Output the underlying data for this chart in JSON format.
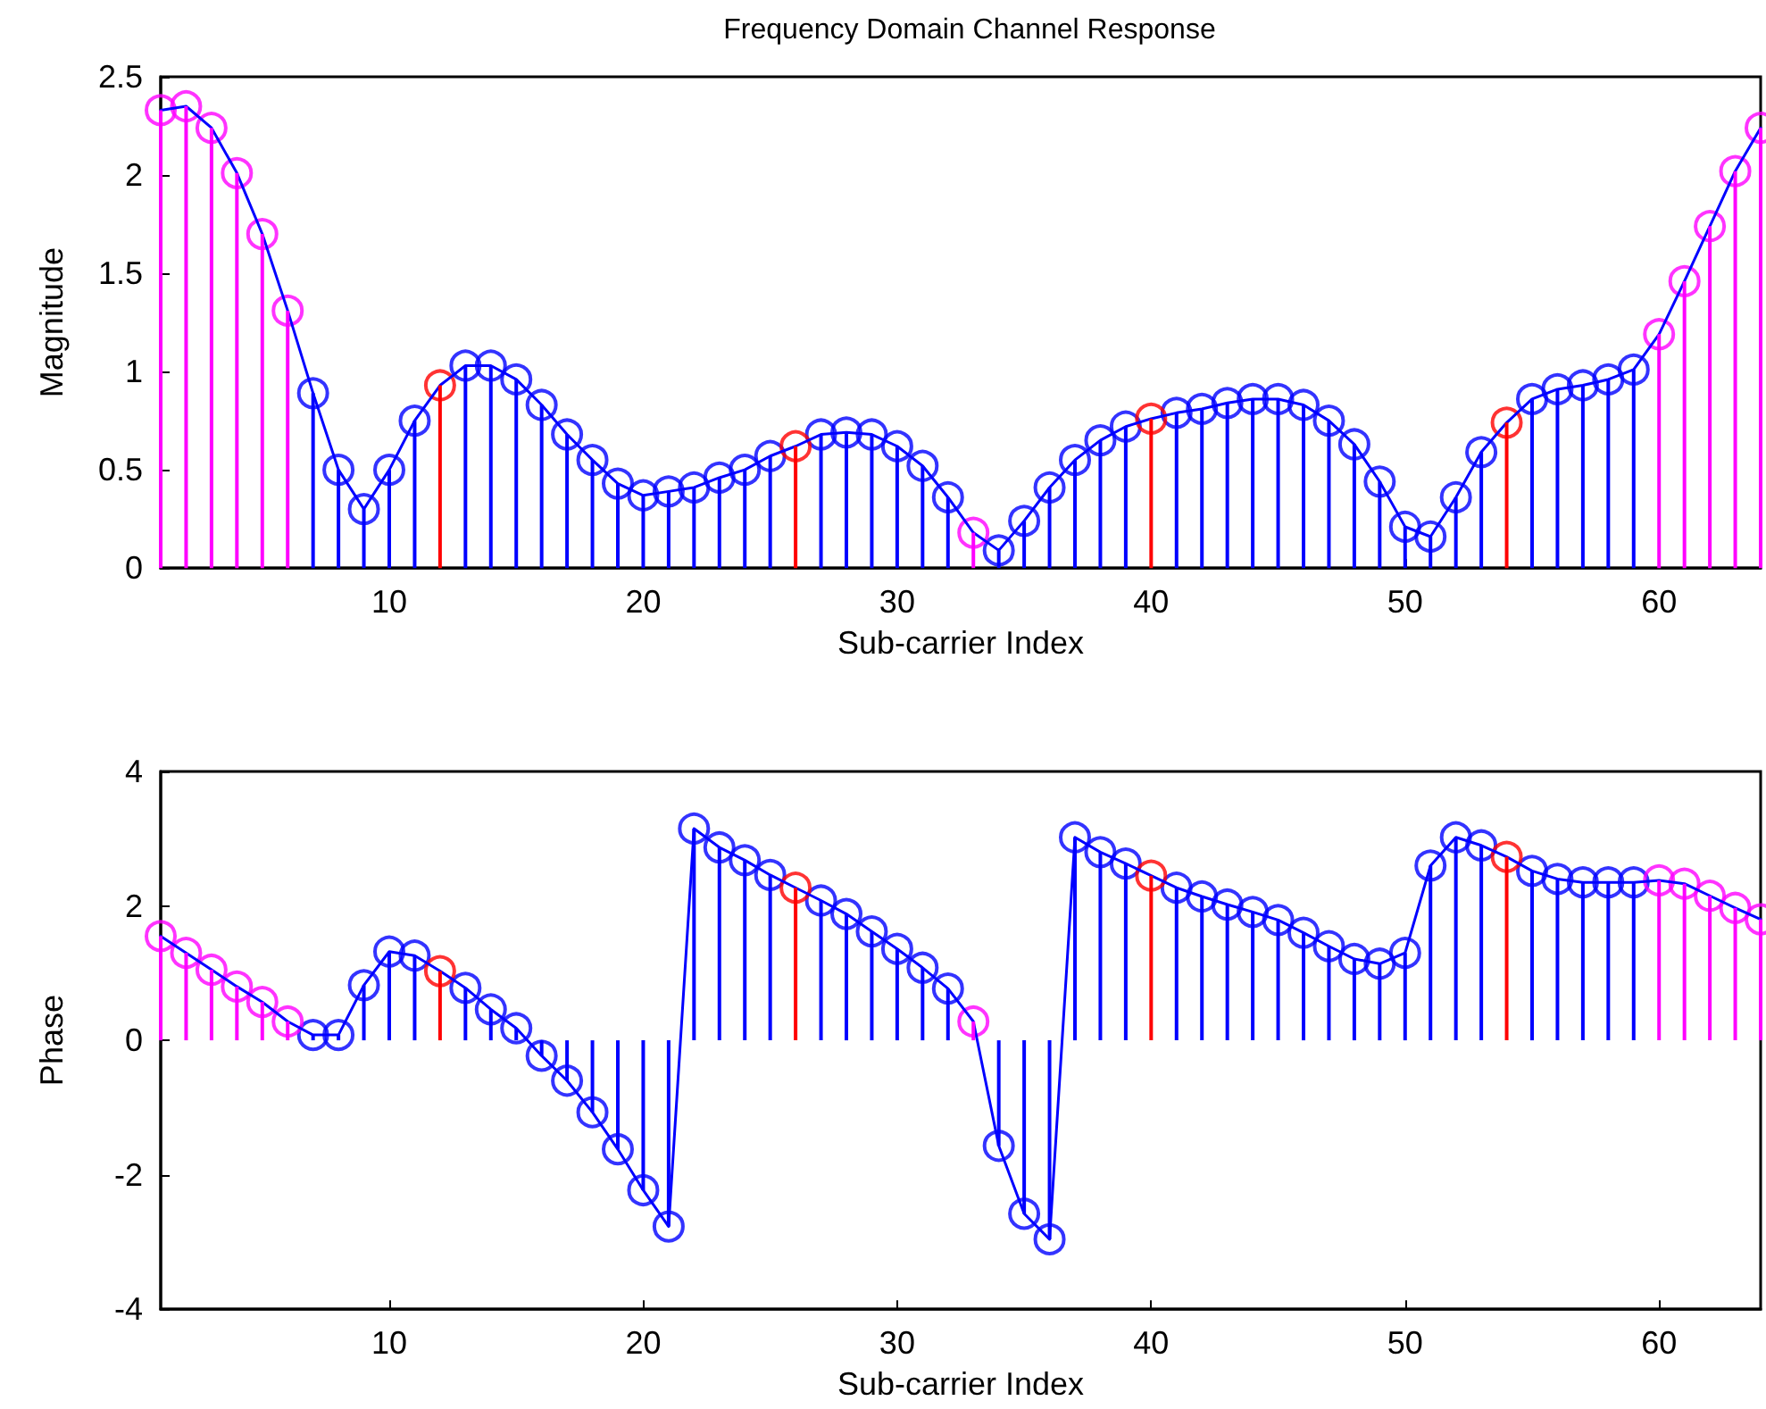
{
  "chart_data": [
    {
      "type": "lollipop",
      "title": "Frequency Domain Channel Response",
      "xlabel": "Sub-carrier Index",
      "ylabel": "Magnitude",
      "x": [
        1,
        2,
        3,
        4,
        5,
        6,
        7,
        8,
        9,
        10,
        11,
        12,
        13,
        14,
        15,
        16,
        17,
        18,
        19,
        20,
        21,
        22,
        23,
        24,
        25,
        26,
        27,
        28,
        29,
        30,
        31,
        32,
        33,
        34,
        35,
        36,
        37,
        38,
        39,
        40,
        41,
        42,
        43,
        44,
        45,
        46,
        47,
        48,
        49,
        50,
        51,
        52,
        53,
        54,
        55,
        56,
        57,
        58,
        59,
        60,
        61,
        62,
        63,
        64
      ],
      "xlim": [
        1,
        64
      ],
      "xticks": [
        10,
        20,
        30,
        40,
        50,
        60
      ],
      "ylim": [
        0,
        2.5
      ],
      "yticks": [
        0,
        0.5,
        1,
        1.5,
        2,
        2.5
      ],
      "grid": false,
      "marker": "circle",
      "series": [
        {
          "type": "line",
          "color": "#0000ff",
          "marker": "none",
          "line_style": "solid",
          "values": [
            2.33,
            2.35,
            2.24,
            2.01,
            1.7,
            1.31,
            0.89,
            0.5,
            0.3,
            0.5,
            0.75,
            0.93,
            1.03,
            1.03,
            0.96,
            0.83,
            0.68,
            0.55,
            0.43,
            0.37,
            0.39,
            0.41,
            0.46,
            0.5,
            0.57,
            0.62,
            0.68,
            0.69,
            0.68,
            0.62,
            0.52,
            0.36,
            0.18,
            0.09,
            0.24,
            0.41,
            0.55,
            0.65,
            0.72,
            0.76,
            0.79,
            0.81,
            0.84,
            0.86,
            0.86,
            0.83,
            0.75,
            0.63,
            0.44,
            0.21,
            0.16,
            0.36,
            0.59,
            0.74,
            0.86,
            0.91,
            0.93,
            0.96,
            1.01,
            1.19,
            1.46,
            1.74,
            2.02,
            2.24
          ]
        },
        {
          "color": "#0000ff",
          "values": [
            null,
            null,
            null,
            null,
            null,
            null,
            0.89,
            0.5,
            0.3,
            0.5,
            0.75,
            null,
            1.03,
            1.03,
            0.96,
            0.83,
            0.68,
            0.55,
            0.43,
            0.37,
            0.39,
            0.41,
            0.46,
            0.5,
            0.57,
            null,
            0.68,
            0.69,
            0.68,
            0.62,
            0.52,
            0.36,
            null,
            0.09,
            0.24,
            0.41,
            0.55,
            0.65,
            0.72,
            null,
            0.79,
            0.81,
            0.84,
            0.86,
            0.86,
            0.83,
            0.75,
            0.63,
            0.44,
            0.21,
            0.16,
            0.36,
            0.59,
            null,
            0.86,
            0.91,
            0.93,
            0.96,
            1.01,
            null,
            null,
            null,
            null,
            null
          ]
        },
        {
          "color": "#ff0000",
          "values": [
            null,
            null,
            null,
            null,
            null,
            null,
            null,
            null,
            null,
            null,
            null,
            0.93,
            null,
            null,
            null,
            null,
            null,
            null,
            null,
            null,
            null,
            null,
            null,
            null,
            null,
            0.62,
            null,
            null,
            null,
            null,
            null,
            null,
            null,
            null,
            null,
            null,
            null,
            null,
            null,
            0.76,
            null,
            null,
            null,
            null,
            null,
            null,
            null,
            null,
            null,
            null,
            null,
            null,
            null,
            0.74,
            null,
            null,
            null,
            null,
            null,
            null,
            null,
            null,
            null,
            null
          ]
        },
        {
          "color": "#ff00ff",
          "values": [
            2.33,
            2.35,
            2.24,
            2.01,
            1.7,
            1.31,
            null,
            null,
            null,
            null,
            null,
            null,
            null,
            null,
            null,
            null,
            null,
            null,
            null,
            null,
            null,
            null,
            null,
            null,
            null,
            null,
            null,
            null,
            null,
            null,
            null,
            null,
            0.18,
            null,
            null,
            null,
            null,
            null,
            null,
            null,
            null,
            null,
            null,
            null,
            null,
            null,
            null,
            null,
            null,
            null,
            null,
            null,
            null,
            null,
            null,
            null,
            null,
            null,
            null,
            1.19,
            1.46,
            1.74,
            2.02,
            2.24
          ]
        }
      ]
    },
    {
      "type": "lollipop",
      "xlabel": "Sub-carrier Index",
      "ylabel": "Phase",
      "x": [
        1,
        2,
        3,
        4,
        5,
        6,
        7,
        8,
        9,
        10,
        11,
        12,
        13,
        14,
        15,
        16,
        17,
        18,
        19,
        20,
        21,
        22,
        23,
        24,
        25,
        26,
        27,
        28,
        29,
        30,
        31,
        32,
        33,
        34,
        35,
        36,
        37,
        38,
        39,
        40,
        41,
        42,
        43,
        44,
        45,
        46,
        47,
        48,
        49,
        50,
        51,
        52,
        53,
        54,
        55,
        56,
        57,
        58,
        59,
        60,
        61,
        62,
        63,
        64
      ],
      "xlim": [
        1,
        64
      ],
      "xticks": [
        10,
        20,
        30,
        40,
        50,
        60
      ],
      "ylim": [
        -4,
        4
      ],
      "yticks": [
        -4,
        -2,
        0,
        2,
        4
      ],
      "grid": false,
      "marker": "circle",
      "series": [
        {
          "type": "line",
          "color": "#0000ff",
          "marker": "none",
          "line_style": "solid",
          "values": [
            1.55,
            1.3,
            1.05,
            0.8,
            0.57,
            0.28,
            0.08,
            0.08,
            0.82,
            1.32,
            1.26,
            1.03,
            0.78,
            0.46,
            0.18,
            -0.23,
            -0.6,
            -1.07,
            -1.62,
            -2.23,
            -2.77,
            3.15,
            2.87,
            2.68,
            2.46,
            2.27,
            2.08,
            1.88,
            1.62,
            1.36,
            1.08,
            0.77,
            0.28,
            -1.57,
            -2.58,
            -2.96,
            3.02,
            2.8,
            2.63,
            2.45,
            2.27,
            2.14,
            2.02,
            1.91,
            1.79,
            1.6,
            1.4,
            1.21,
            1.14,
            1.3,
            2.6,
            3.02,
            2.9,
            2.73,
            2.52,
            2.4,
            2.35,
            2.35,
            2.35,
            2.38,
            2.33,
            2.15,
            1.97,
            1.8
          ]
        },
        {
          "color": "#0000ff",
          "values": [
            null,
            null,
            null,
            null,
            null,
            null,
            0.08,
            0.08,
            0.82,
            1.32,
            1.26,
            null,
            0.78,
            0.46,
            0.18,
            -0.23,
            -0.6,
            -1.07,
            -1.62,
            -2.23,
            -2.77,
            3.15,
            2.87,
            2.68,
            2.46,
            null,
            2.08,
            1.88,
            1.62,
            1.36,
            1.08,
            0.77,
            null,
            -1.57,
            -2.58,
            -2.96,
            3.02,
            2.8,
            2.63,
            null,
            2.27,
            2.14,
            2.02,
            1.91,
            1.79,
            1.6,
            1.4,
            1.21,
            1.14,
            1.3,
            2.6,
            3.02,
            2.9,
            null,
            2.52,
            2.4,
            2.35,
            2.35,
            2.35,
            null,
            null,
            null,
            null,
            null
          ]
        },
        {
          "color": "#ff0000",
          "values": [
            null,
            null,
            null,
            null,
            null,
            null,
            null,
            null,
            null,
            null,
            null,
            1.03,
            null,
            null,
            null,
            null,
            null,
            null,
            null,
            null,
            null,
            null,
            null,
            null,
            null,
            2.27,
            null,
            null,
            null,
            null,
            null,
            null,
            null,
            null,
            null,
            null,
            null,
            null,
            null,
            2.45,
            null,
            null,
            null,
            null,
            null,
            null,
            null,
            null,
            null,
            null,
            null,
            null,
            null,
            2.73,
            null,
            null,
            null,
            null,
            null,
            null,
            null,
            null,
            null,
            null
          ]
        },
        {
          "color": "#ff00ff",
          "values": [
            1.55,
            1.3,
            1.05,
            0.8,
            0.57,
            0.28,
            null,
            null,
            null,
            null,
            null,
            null,
            null,
            null,
            null,
            null,
            null,
            null,
            null,
            null,
            null,
            null,
            null,
            null,
            null,
            null,
            null,
            null,
            null,
            null,
            null,
            null,
            0.28,
            null,
            null,
            null,
            null,
            null,
            null,
            null,
            null,
            null,
            null,
            null,
            null,
            null,
            null,
            null,
            null,
            null,
            null,
            null,
            null,
            null,
            null,
            null,
            null,
            null,
            null,
            2.38,
            2.33,
            2.15,
            1.97,
            1.8
          ]
        }
      ]
    }
  ]
}
